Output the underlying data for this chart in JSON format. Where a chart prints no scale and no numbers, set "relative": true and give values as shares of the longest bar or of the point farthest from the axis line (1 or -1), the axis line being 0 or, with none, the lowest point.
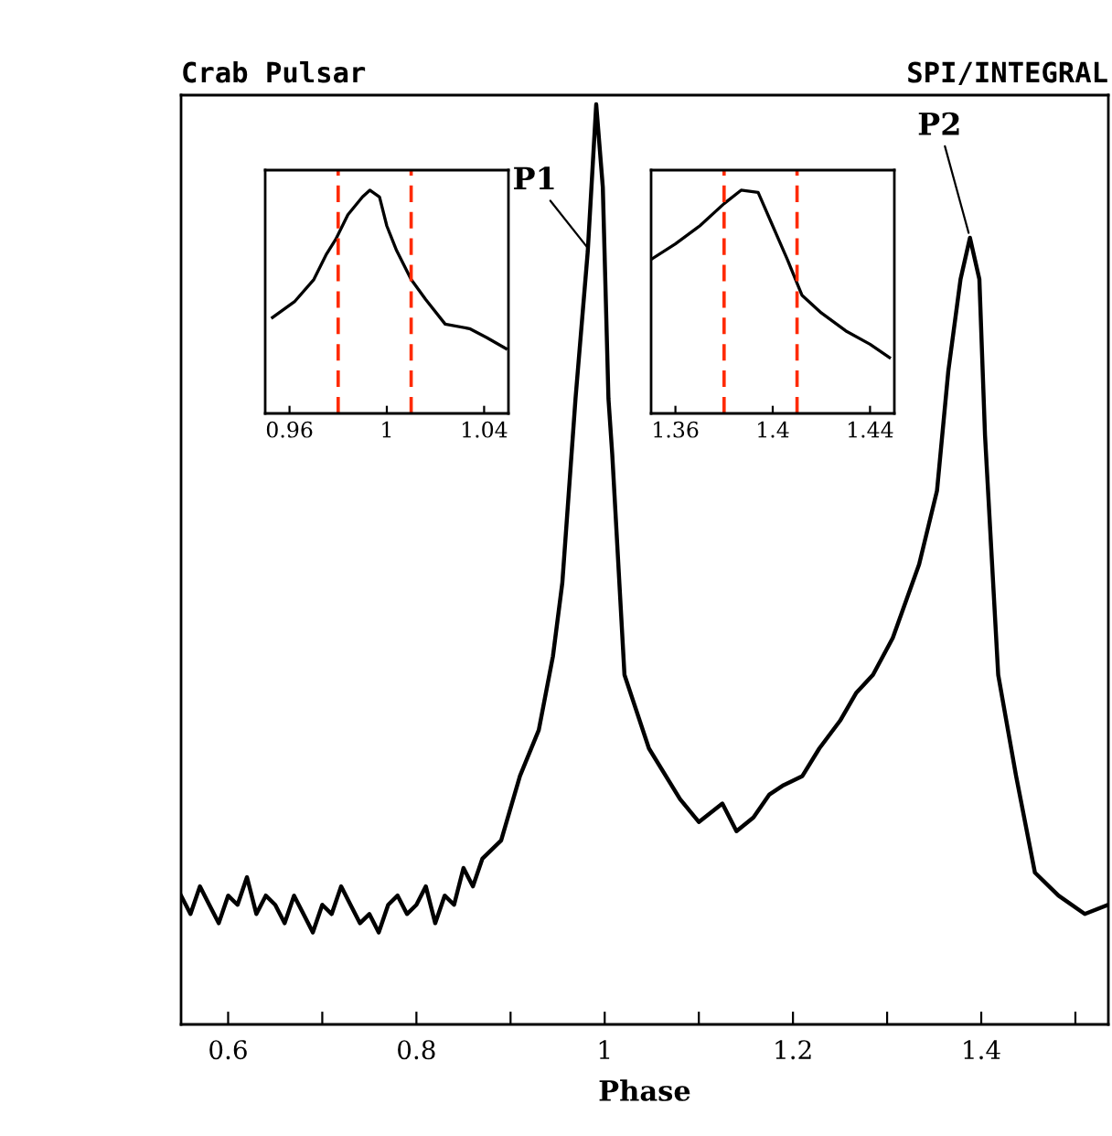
{
  "chart_data": [
    {
      "type": "line",
      "title": "Crab Pulsar",
      "subtitle": "SPI/INTEGRAL",
      "xlabel": "Phase",
      "relative": true,
      "xlim": [
        0.55,
        1.535
      ],
      "xticks": [
        0.6,
        {
          "value": 0.7,
          "label": null
        },
        0.8,
        {
          "value": 0.9,
          "label": null
        },
        1,
        {
          "value": 1.1,
          "label": null
        },
        1.2,
        {
          "value": 1.3,
          "label": null
        },
        1.4,
        {
          "value": 1.5,
          "label": null
        }
      ],
      "series": [
        {
          "color": "#000000",
          "x": [
            0.55,
            0.56,
            0.57,
            0.58,
            0.59,
            0.6,
            0.61,
            0.62,
            0.63,
            0.64,
            0.65,
            0.66,
            0.67,
            0.68,
            0.69,
            0.7,
            0.71,
            0.72,
            0.73,
            0.74,
            0.75,
            0.76,
            0.77,
            0.78,
            0.79,
            0.8,
            0.81,
            0.82,
            0.83,
            0.84,
            0.85,
            0.86,
            0.87,
            0.89,
            0.91,
            0.93,
            0.945,
            0.955,
            0.969,
            0.982,
            0.991,
            0.998,
            1.004,
            1.008,
            1.021,
            1.047,
            1.08,
            1.1,
            1.125,
            1.14,
            1.158,
            1.175,
            1.19,
            1.21,
            1.228,
            1.25,
            1.267,
            1.285,
            1.306,
            1.334,
            1.353,
            1.365,
            1.378,
            1.388,
            1.398,
            1.404,
            1.418,
            1.437,
            1.457,
            1.482,
            1.51,
            1.535
          ],
          "values": [
            0.14,
            0.12,
            0.15,
            0.13,
            0.11,
            0.14,
            0.13,
            0.16,
            0.12,
            0.14,
            0.13,
            0.11,
            0.14,
            0.12,
            0.1,
            0.13,
            0.12,
            0.15,
            0.13,
            0.11,
            0.12,
            0.1,
            0.13,
            0.14,
            0.12,
            0.13,
            0.15,
            0.11,
            0.14,
            0.13,
            0.17,
            0.15,
            0.18,
            0.2,
            0.27,
            0.32,
            0.4,
            0.48,
            0.68,
            0.84,
            1.0,
            0.91,
            0.68,
            0.62,
            0.38,
            0.3,
            0.245,
            0.22,
            0.24,
            0.21,
            0.225,
            0.25,
            0.26,
            0.27,
            0.3,
            0.33,
            0.36,
            0.38,
            0.42,
            0.5,
            0.58,
            0.71,
            0.81,
            0.855,
            0.81,
            0.64,
            0.38,
            0.27,
            0.165,
            0.14,
            0.12,
            0.13
          ]
        }
      ],
      "annotations": [
        {
          "text": "P1",
          "x": 0.985,
          "y": 0.84
        },
        {
          "text": "P2",
          "x": 1.388,
          "y": 0.855
        }
      ]
    },
    {
      "type": "line",
      "relative": true,
      "xlim": [
        0.95,
        1.05
      ],
      "xticks": [
        0.96,
        1,
        1.04
      ],
      "series": [
        {
          "color": "#000000",
          "x": [
            0.953,
            0.962,
            0.97,
            0.975,
            0.979,
            0.984,
            0.99,
            0.993,
            0.997,
            1.0,
            1.004,
            1.01,
            1.016,
            1.024,
            1.034,
            1.041,
            1.049
          ],
          "values": [
            0.43,
            0.5,
            0.6,
            0.71,
            0.78,
            0.89,
            0.97,
            1.0,
            0.97,
            0.84,
            0.73,
            0.6,
            0.51,
            0.4,
            0.38,
            0.34,
            0.29
          ]
        }
      ],
      "ref_lines": [
        {
          "axis": "x",
          "value": 0.98,
          "color": "#ff2a00",
          "line_style": "dashed"
        },
        {
          "axis": "x",
          "value": 1.01,
          "color": "#ff2a00",
          "line_style": "dashed"
        }
      ]
    },
    {
      "type": "line",
      "relative": true,
      "xlim": [
        1.35,
        1.45
      ],
      "xticks": [
        1.36,
        1.4,
        1.44
      ],
      "series": [
        {
          "color": "#000000",
          "x": [
            1.35,
            1.36,
            1.37,
            1.38,
            1.387,
            1.394,
            1.4,
            1.406,
            1.412,
            1.42,
            1.43,
            1.44,
            1.448
          ],
          "values": [
            0.69,
            0.76,
            0.84,
            0.94,
            1.0,
            0.99,
            0.84,
            0.69,
            0.53,
            0.45,
            0.37,
            0.31,
            0.25
          ]
        }
      ],
      "ref_lines": [
        {
          "axis": "x",
          "value": 1.38,
          "color": "#ff2a00",
          "line_style": "dashed"
        },
        {
          "axis": "x",
          "value": 1.41,
          "color": "#ff2a00",
          "line_style": "dashed"
        }
      ]
    }
  ]
}
